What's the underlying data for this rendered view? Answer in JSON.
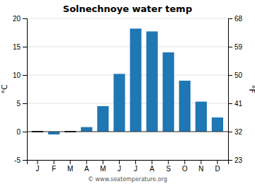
{
  "chart_data": {
    "type": "bar",
    "title": "Solnechnoye water temp",
    "categories": [
      "J",
      "F",
      "M",
      "A",
      "M",
      "J",
      "J",
      "A",
      "S",
      "O",
      "N",
      "D"
    ],
    "values": [
      0,
      -0.5,
      0,
      0.8,
      4.5,
      10.2,
      18.2,
      17.7,
      14.0,
      9.0,
      5.3,
      2.5
    ],
    "ylim": [
      -5,
      20
    ],
    "yticks": [
      -5,
      0,
      5,
      10,
      15,
      20
    ],
    "ylabel": "°C",
    "y2lim": [
      23,
      68
    ],
    "y2ticks": [
      23,
      32,
      41,
      50,
      59,
      68
    ],
    "y2label": "°F",
    "grid": true,
    "annotations": [
      "© www.seatemperature.org"
    ]
  }
}
